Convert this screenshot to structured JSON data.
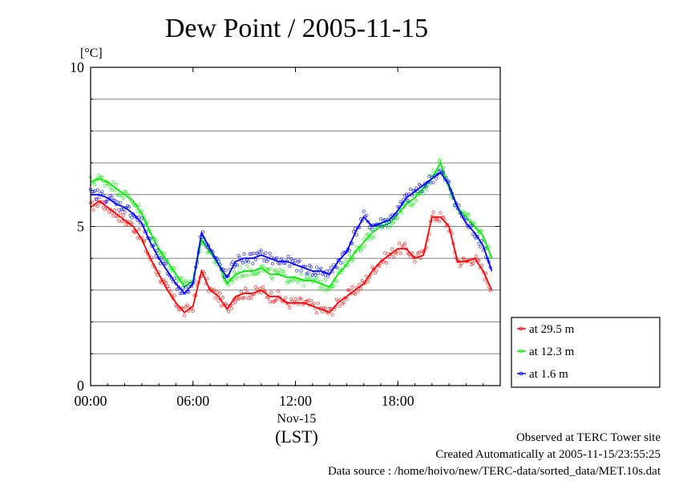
{
  "chart_data": {
    "type": "line",
    "title": "Dew Point / 2005-11-15",
    "ylabel": "[°C]",
    "xlabel": "(LST)",
    "date_label": "Nov-15",
    "ylim": [
      0,
      10
    ],
    "yticks": [
      0,
      5,
      10
    ],
    "y_tick_labels": [
      "0",
      "5",
      "10"
    ],
    "xlim": [
      0,
      24
    ],
    "xticks": [
      0,
      6,
      12,
      18
    ],
    "x_tick_labels": [
      "00:00",
      "06:00",
      "12:00",
      "18:00"
    ],
    "grid": true,
    "legend_position": "bottom-right",
    "series": [
      {
        "name": "at 29.5 m",
        "color": "#ff0000",
        "x": [
          0,
          0.5,
          1,
          1.5,
          2,
          2.5,
          3,
          3.5,
          4,
          4.5,
          5,
          5.5,
          6,
          6.5,
          7,
          7.5,
          8,
          8.5,
          9,
          9.5,
          10,
          10.5,
          11,
          11.5,
          12,
          12.5,
          13,
          13.5,
          14,
          14.5,
          15,
          15.5,
          16,
          16.5,
          17,
          17.5,
          18,
          18.5,
          19,
          19.5,
          20,
          20.5,
          21,
          21.5,
          22,
          22.5,
          23,
          23.5
        ],
        "y": [
          5.6,
          5.8,
          5.6,
          5.4,
          5.2,
          5.0,
          4.6,
          4.0,
          3.5,
          3.0,
          2.6,
          2.3,
          2.5,
          3.6,
          3.0,
          2.8,
          2.4,
          2.8,
          2.9,
          2.9,
          3.0,
          2.8,
          2.8,
          2.6,
          2.6,
          2.6,
          2.5,
          2.4,
          2.3,
          2.6,
          2.8,
          3.0,
          3.2,
          3.6,
          3.9,
          4.1,
          4.3,
          4.3,
          4.0,
          4.1,
          5.3,
          5.3,
          5.0,
          3.9,
          3.9,
          4.0,
          3.6,
          3.0
        ]
      },
      {
        "name": "at 12.3 m",
        "color": "#00ee00",
        "x": [
          0,
          0.5,
          1,
          1.5,
          2,
          2.5,
          3,
          3.5,
          4,
          4.5,
          5,
          5.5,
          6,
          6.5,
          7,
          7.5,
          8,
          8.5,
          9,
          9.5,
          10,
          10.5,
          11,
          11.5,
          12,
          12.5,
          13,
          13.5,
          14,
          14.5,
          15,
          15.5,
          16,
          16.5,
          17,
          17.5,
          18,
          18.5,
          19,
          19.5,
          20,
          20.5,
          21,
          21.5,
          22,
          22.5,
          23,
          23.5
        ],
        "y": [
          6.4,
          6.5,
          6.4,
          6.2,
          6.0,
          5.8,
          5.4,
          4.8,
          4.3,
          3.9,
          3.5,
          3.1,
          3.3,
          4.6,
          4.2,
          3.8,
          3.2,
          3.5,
          3.6,
          3.6,
          3.7,
          3.5,
          3.5,
          3.4,
          3.4,
          3.3,
          3.3,
          3.2,
          3.1,
          3.5,
          3.8,
          4.2,
          4.5,
          4.8,
          5.0,
          5.1,
          5.4,
          5.7,
          5.9,
          6.2,
          6.5,
          7.0,
          6.2,
          5.6,
          5.3,
          5.0,
          4.7,
          4.0
        ]
      },
      {
        "name": "at 1.6 m",
        "color": "#0000ff",
        "x": [
          0,
          0.5,
          1,
          1.5,
          2,
          2.5,
          3,
          3.5,
          4,
          4.5,
          5,
          5.5,
          6,
          6.5,
          7,
          7.5,
          8,
          8.5,
          9,
          9.5,
          10,
          10.5,
          11,
          11.5,
          12,
          12.5,
          13,
          13.5,
          14,
          14.5,
          15,
          15.5,
          16,
          16.5,
          17,
          17.5,
          18,
          18.5,
          19,
          19.5,
          20,
          20.5,
          21,
          21.5,
          22,
          22.5,
          23,
          23.5
        ],
        "y": [
          6.0,
          6.0,
          5.9,
          5.7,
          5.6,
          5.4,
          5.1,
          4.5,
          4.0,
          3.6,
          3.2,
          2.9,
          3.2,
          4.8,
          4.3,
          3.8,
          3.4,
          3.9,
          4.0,
          4.0,
          4.1,
          4.0,
          3.9,
          3.9,
          3.8,
          3.7,
          3.6,
          3.6,
          3.5,
          3.9,
          4.2,
          4.8,
          5.3,
          5.0,
          5.1,
          5.2,
          5.5,
          5.9,
          6.1,
          6.3,
          6.5,
          6.7,
          6.3,
          5.6,
          5.1,
          4.8,
          4.4,
          3.6
        ]
      }
    ]
  },
  "footer": {
    "site": "Observed at TERC Tower site",
    "created": "Created Automatically at 2005-11-15/23:55:25",
    "source": "Data source : /home/hoivo/new/TERC-data/sorted_data/MET.10s.dat"
  },
  "colors": {
    "grid": "#808080",
    "frame": "#000000"
  }
}
